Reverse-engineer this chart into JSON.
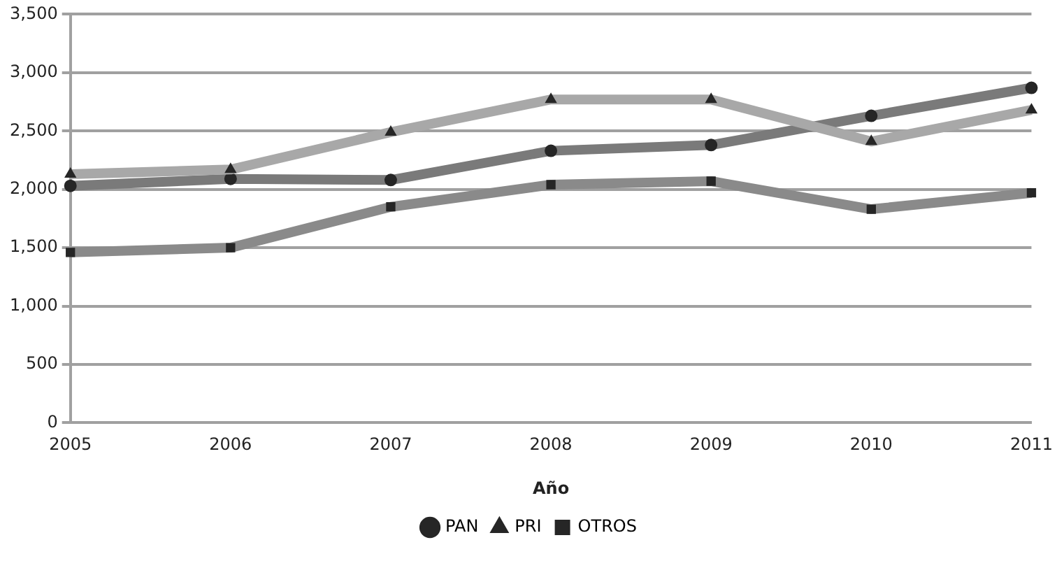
{
  "chart_data": {
    "type": "line",
    "xlabel": "Año",
    "categories": [
      "2005",
      "2006",
      "2007",
      "2008",
      "2009",
      "2010",
      "2011"
    ],
    "series": [
      {
        "name": "PAN",
        "color": "#7a7a7a",
        "marker": "circle",
        "values": [
          2030,
          2090,
          2080,
          2330,
          2380,
          2630,
          2870
        ]
      },
      {
        "name": "PRI",
        "color": "#a8a8a8",
        "marker": "triangle",
        "values": [
          2130,
          2170,
          2490,
          2770,
          2770,
          2410,
          2680
        ]
      },
      {
        "name": "OTROS",
        "color": "#8a8a8a",
        "marker": "square",
        "values": [
          1460,
          1500,
          1850,
          2040,
          2070,
          1830,
          1970
        ]
      }
    ],
    "ylim": [
      0,
      3500
    ],
    "yticks": [
      0,
      500,
      {
        "value": 1000,
        "label": "1,000"
      },
      {
        "value": 1500,
        "label": "1,500"
      },
      {
        "value": 2000,
        "label": "2,000"
      },
      {
        "value": 2500,
        "label": "2,500"
      },
      {
        "value": 3000,
        "label": "3,000"
      },
      {
        "value": 3500,
        "label": "3,500"
      }
    ],
    "grid": "y",
    "legend": "bottom"
  }
}
